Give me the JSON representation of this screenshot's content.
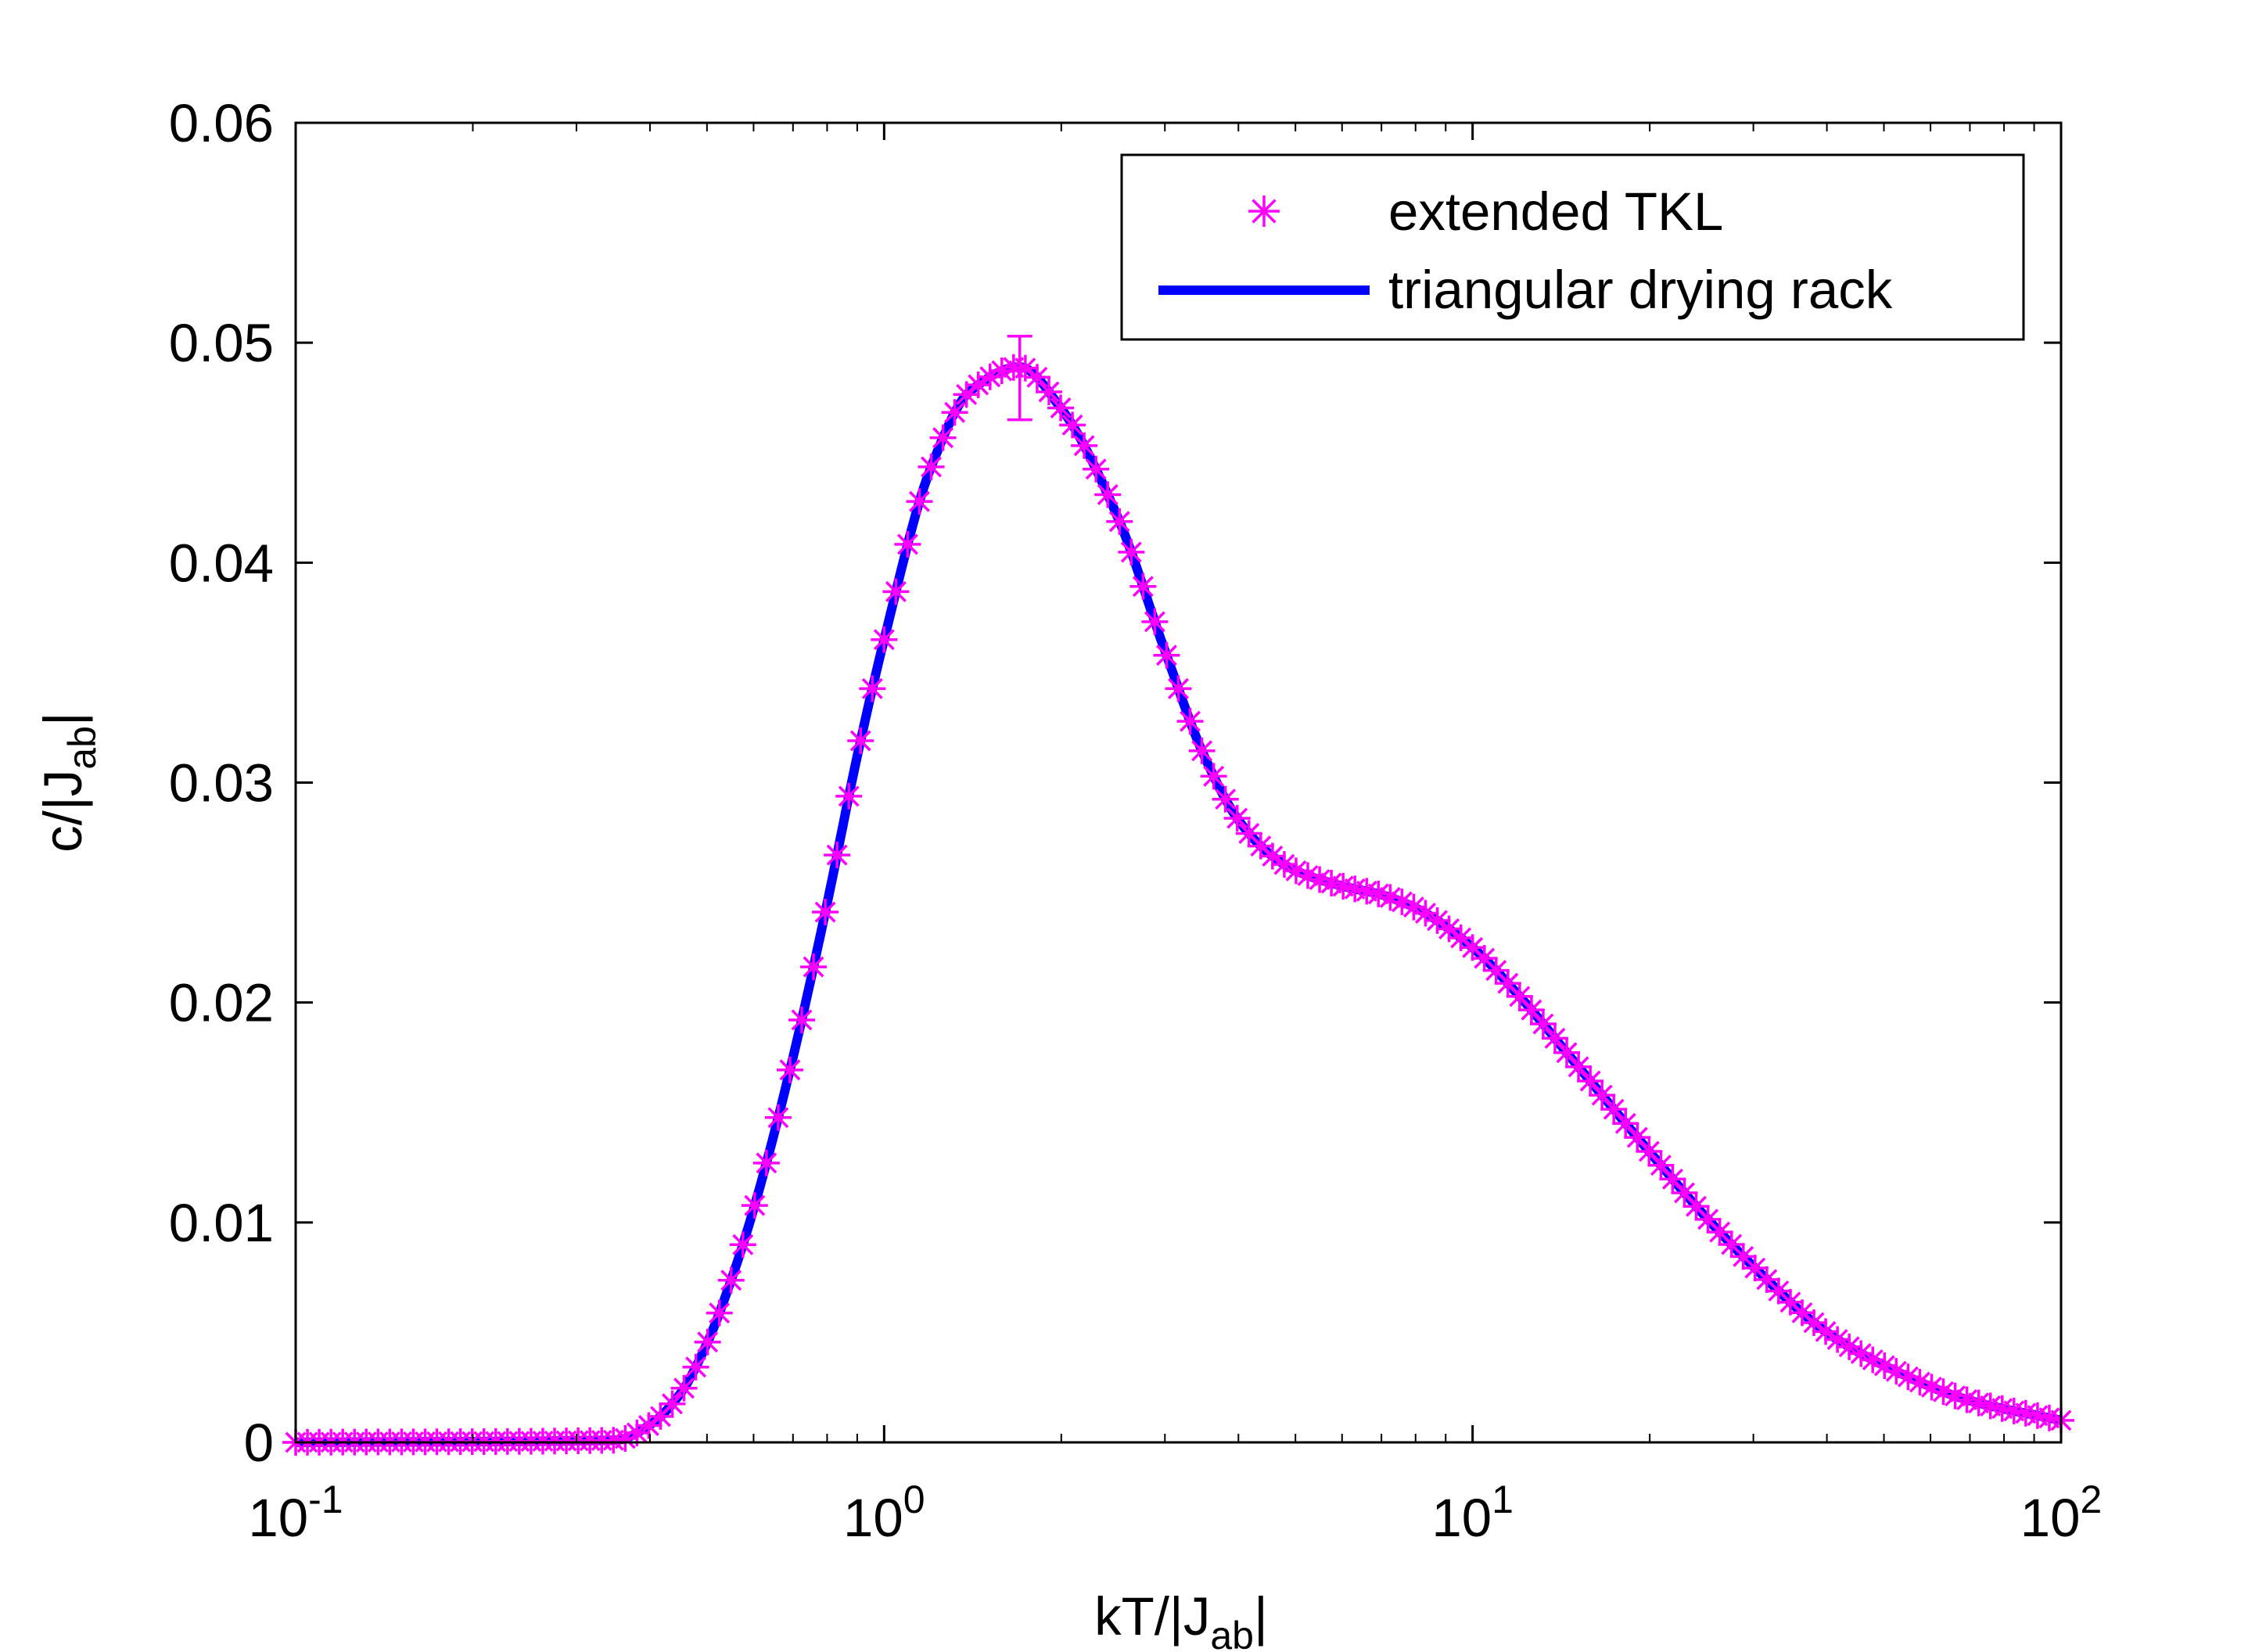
{
  "chart_data": {
    "type": "line",
    "xscale": "log",
    "xlim": [
      0.1,
      100
    ],
    "ylim": [
      0,
      0.06
    ],
    "xlabel": "kT/|J",
    "xlabel_sub": "ab",
    "xlabel_end": "|",
    "ylabel": "c/|J",
    "ylabel_sub": "ab",
    "ylabel_end": "|",
    "grid": false,
    "legend_position": "top-right",
    "y_ticks": [
      0,
      0.01,
      0.02,
      0.03,
      0.04,
      0.05,
      0.06
    ],
    "y_tick_labels": [
      "0",
      "0.01",
      "0.02",
      "0.03",
      "0.04",
      "0.05",
      "0.06"
    ],
    "x_ticks": [
      {
        "value": 0.1,
        "base": "10",
        "exp": "-1"
      },
      {
        "value": 1,
        "base": "10",
        "exp": "0"
      },
      {
        "value": 10,
        "base": "10",
        "exp": "1"
      },
      {
        "value": 100,
        "base": "10",
        "exp": "2"
      }
    ],
    "series": [
      {
        "name": "extended TKL",
        "style": "markers",
        "marker": "asterisk",
        "color": "#ff00ff",
        "x": [
          0.1,
          0.35,
          0.4,
          0.45,
          0.5,
          0.55,
          0.6,
          0.7,
          0.8,
          0.9,
          1.0,
          1.2,
          1.4,
          1.7,
          2.0,
          2.5,
          3.0,
          3.5,
          4.0,
          4.5,
          5.0,
          6.0,
          7.0,
          8.0,
          10.0,
          12.0,
          15.0,
          20.0,
          25.0,
          30.0,
          40.0,
          50.0,
          70.0,
          100.0
        ],
        "values": [
          0,
          0.0001,
          0.0008,
          0.0022,
          0.0045,
          0.0074,
          0.0106,
          0.0175,
          0.0245,
          0.0312,
          0.0365,
          0.0443,
          0.0478,
          0.0489,
          0.047,
          0.042,
          0.036,
          0.0312,
          0.0283,
          0.0268,
          0.026,
          0.0253,
          0.0249,
          0.0243,
          0.0225,
          0.0203,
          0.0172,
          0.0132,
          0.0102,
          0.008,
          0.005,
          0.0035,
          0.0019,
          0.001
        ]
      },
      {
        "name": "triangular drying rack",
        "style": "line",
        "color": "#0000ff",
        "x": [
          0.1,
          0.35,
          0.4,
          0.45,
          0.5,
          0.55,
          0.6,
          0.7,
          0.8,
          0.9,
          1.0,
          1.2,
          1.4,
          1.7,
          2.0,
          2.5,
          3.0,
          3.5,
          4.0,
          4.5,
          5.0,
          6.0,
          7.0,
          8.0,
          10.0,
          12.0,
          15.0,
          20.0,
          25.0,
          30.0,
          40.0,
          50.0,
          70.0,
          100.0
        ],
        "values": [
          0,
          0.0001,
          0.0008,
          0.0022,
          0.0045,
          0.0074,
          0.0106,
          0.0175,
          0.0245,
          0.0312,
          0.0365,
          0.0443,
          0.0478,
          0.0489,
          0.047,
          0.042,
          0.036,
          0.0312,
          0.0283,
          0.0268,
          0.026,
          0.0253,
          0.0249,
          0.0243,
          0.0225,
          0.0203,
          0.0172,
          0.0132,
          0.0102,
          0.008,
          0.005,
          0.0035,
          0.0019,
          0.001
        ]
      }
    ],
    "error_bar": {
      "x": 1.7,
      "y": 0.0489,
      "low": 0.0465,
      "high": 0.0503
    }
  },
  "legend": {
    "items": [
      {
        "label": "extended TKL",
        "symbol": "asterisk",
        "color": "#ff00ff"
      },
      {
        "label": "triangular drying rack",
        "symbol": "line",
        "color": "#0000ff"
      }
    ]
  }
}
